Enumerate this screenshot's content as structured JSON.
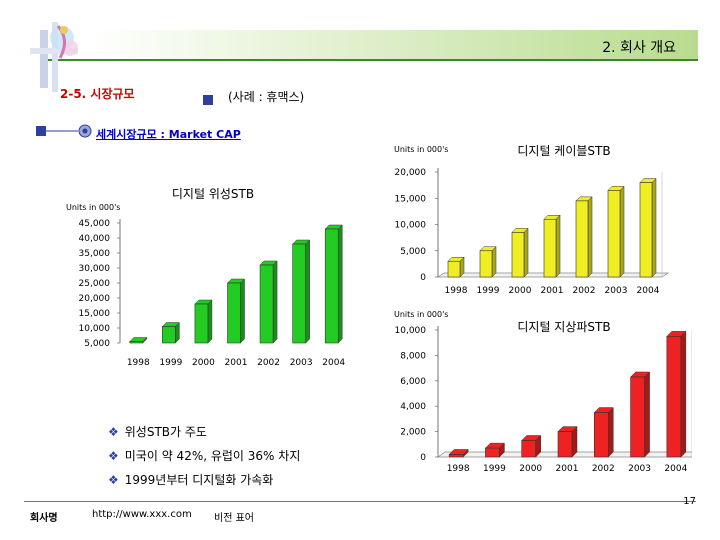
{
  "header": {
    "title": "2. 회사 개요"
  },
  "section": {
    "title": "2-5. 시장규모",
    "subtitle": "(사례 : 휴맥스)"
  },
  "market": {
    "label": "세계시장규모 : Market CAP"
  },
  "bullets": [
    {
      "text": "위성STB가 주도"
    },
    {
      "text": "미국이 약 42%, 유럽이 36% 차지"
    },
    {
      "text": "1999년부터 디지털화 가속화"
    }
  ],
  "footer": {
    "left": "회사명",
    "url": "http://www.xxx.com",
    "note": "비전 표어",
    "page": "17"
  },
  "colors": {
    "satellite": "#22cc22",
    "cable": "#eeee22",
    "terrestrial": "#ee2222",
    "accent": "#2e3f9f",
    "title_red": "#cc0000",
    "link_blue": "#0000cc"
  },
  "chart_data": [
    {
      "id": "satellite",
      "type": "bar",
      "title": "디지털 위성STB",
      "unit_label": "Units in 000's",
      "categories": [
        "1998",
        "1999",
        "2000",
        "2001",
        "2002",
        "2003",
        "2004"
      ],
      "values": [
        5500,
        10500,
        18000,
        25000,
        31000,
        38000,
        43000
      ],
      "ylim": [
        5000,
        45000
      ],
      "yticks": [
        "45,000",
        "40,000",
        "35,000",
        "30,000",
        "25,000",
        "20,000",
        "15,000",
        "10,000",
        "5,000"
      ],
      "ytick_values": [
        45000,
        40000,
        35000,
        30000,
        25000,
        20000,
        15000,
        10000,
        5000
      ],
      "color": "#22cc22"
    },
    {
      "id": "cable",
      "type": "bar",
      "title": "디지털 케이블STB",
      "unit_label": "Units in 000's",
      "categories": [
        "1998",
        "1999",
        "2000",
        "2001",
        "2002",
        "2003",
        "2004"
      ],
      "values": [
        3000,
        5000,
        8500,
        11000,
        14500,
        16500,
        18000
      ],
      "ylim": [
        0,
        20000
      ],
      "yticks": [
        "20,000",
        "15,000",
        "10,000",
        "5,000",
        "0"
      ],
      "ytick_values": [
        20000,
        15000,
        10000,
        5000,
        0
      ],
      "color": "#eeee22"
    },
    {
      "id": "terrestrial",
      "type": "bar",
      "title": "디지털 지상파STB",
      "unit_label": "Units in 000's",
      "categories": [
        "1998",
        "1999",
        "2000",
        "2001",
        "2002",
        "2003",
        "2004"
      ],
      "values": [
        200,
        700,
        1300,
        2000,
        3500,
        6300,
        9500
      ],
      "ylim": [
        0,
        10000
      ],
      "yticks": [
        "10,000",
        "8,000",
        "6,000",
        "4,000",
        "2,000",
        "0"
      ],
      "ytick_values": [
        10000,
        8000,
        6000,
        4000,
        2000,
        0
      ],
      "color": "#ee2222"
    }
  ]
}
